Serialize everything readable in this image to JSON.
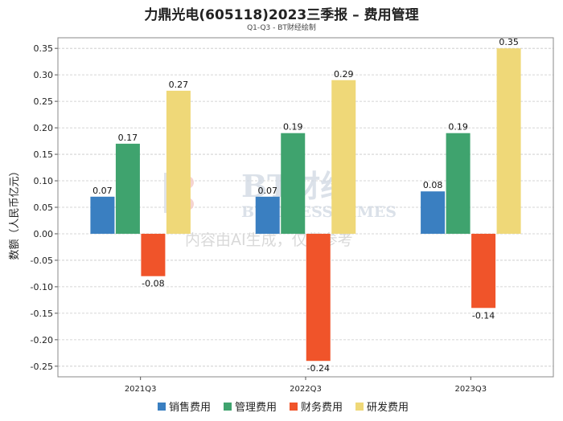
{
  "chart_data": {
    "type": "bar",
    "title": "力鼎光电(605118)2023三季报 – 费用管理",
    "subtitle": "Q1-Q3 - BT财经绘制",
    "ylabel": "数额（人民币亿元）",
    "xlabel": "",
    "categories": [
      "2021Q3",
      "2022Q3",
      "2023Q3"
    ],
    "series": [
      {
        "name": "销售费用",
        "color": "#3a7fc1",
        "values": [
          0.07,
          0.07,
          0.08
        ]
      },
      {
        "name": "管理费用",
        "color": "#3fa36e",
        "values": [
          0.17,
          0.19,
          0.19
        ]
      },
      {
        "name": "财务费用",
        "color": "#f0542a",
        "values": [
          -0.08,
          -0.24,
          -0.14
        ]
      },
      {
        "name": "研发费用",
        "color": "#efd878",
        "values": [
          0.27,
          0.29,
          0.35
        ]
      }
    ],
    "ylim": [
      -0.27,
      0.37
    ],
    "yticks": [
      -0.25,
      -0.2,
      -0.15,
      -0.1,
      -0.05,
      0.0,
      0.05,
      0.1,
      0.15,
      0.2,
      0.25,
      0.3,
      0.35
    ],
    "ytick_labels": [
      "-0.25",
      "-0.20",
      "-0.15",
      "-0.10",
      "-0.05",
      "0.00",
      "0.05",
      "0.10",
      "0.15",
      "0.20",
      "0.25",
      "0.30",
      "0.35"
    ],
    "grid": true,
    "legend": "bottom-center"
  },
  "watermark": {
    "brand": "BT财经",
    "brand_en": "BUSINESS TIMES",
    "notice": "内容由AI生成，仅供参考"
  }
}
